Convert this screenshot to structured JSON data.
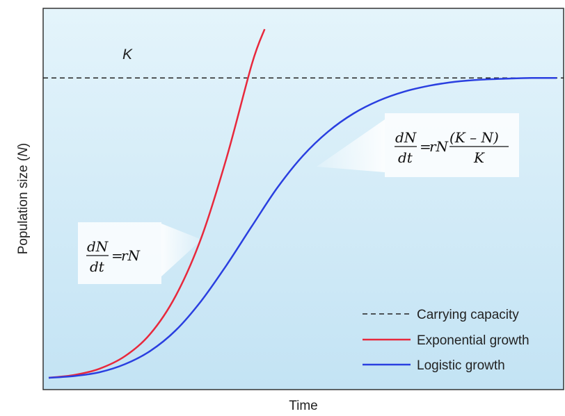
{
  "chart_data": {
    "type": "line",
    "xlabel": "Time",
    "ylabel": "Population size (N)",
    "xlim": [
      0,
      100
    ],
    "ylim": [
      0,
      100
    ],
    "carrying_capacity": {
      "label": "K",
      "value": 86
    },
    "series": [
      {
        "name": "Exponential growth",
        "color": "#e8283c",
        "style": "solid",
        "x": [
          0,
          5,
          10,
          15,
          20,
          25,
          30,
          35,
          40,
          42.5
        ],
        "y": [
          0,
          0.8,
          2.6,
          6.2,
          12.6,
          23.5,
          40.0,
          63.0,
          90.0,
          100.0
        ]
      },
      {
        "name": "Logistic growth",
        "color": "#2a3fe0",
        "style": "solid",
        "x": [
          0,
          5,
          10,
          15,
          20,
          25,
          30,
          35,
          40,
          45,
          50,
          55,
          60,
          65,
          70,
          75,
          80,
          85,
          90,
          95,
          100
        ],
        "y": [
          0,
          0.5,
          1.6,
          3.9,
          7.7,
          13.6,
          22.0,
          32.3,
          43.5,
          54.5,
          63.6,
          70.6,
          75.8,
          79.5,
          82.1,
          83.8,
          84.9,
          85.5,
          85.8,
          86.0,
          86.0
        ]
      },
      {
        "name": "Carrying capacity",
        "color": "#222222",
        "style": "dashed",
        "x": [
          0,
          100
        ],
        "y": [
          86,
          86
        ]
      }
    ],
    "legend": {
      "placement": "bottom-right",
      "items": [
        {
          "label": "Carrying capacity",
          "style": "dashed",
          "color": "#222222"
        },
        {
          "label": "Exponential growth",
          "style": "solid",
          "color": "#e8283c"
        },
        {
          "label": "Logistic growth",
          "style": "solid",
          "color": "#2a3fe0"
        }
      ]
    },
    "annotations": [
      {
        "name": "exponential-equation",
        "lhs_num": "dN",
        "lhs_den": "dt",
        "rhs": "rN"
      },
      {
        "name": "logistic-equation",
        "lhs_num": "dN",
        "lhs_den": "dt",
        "rhs_prefix": "rN",
        "rhs_num": "(K – N)",
        "rhs_den": "K"
      }
    ],
    "background_gradient": [
      "#e4f4fb",
      "#c3e3f4"
    ],
    "grid": false
  }
}
